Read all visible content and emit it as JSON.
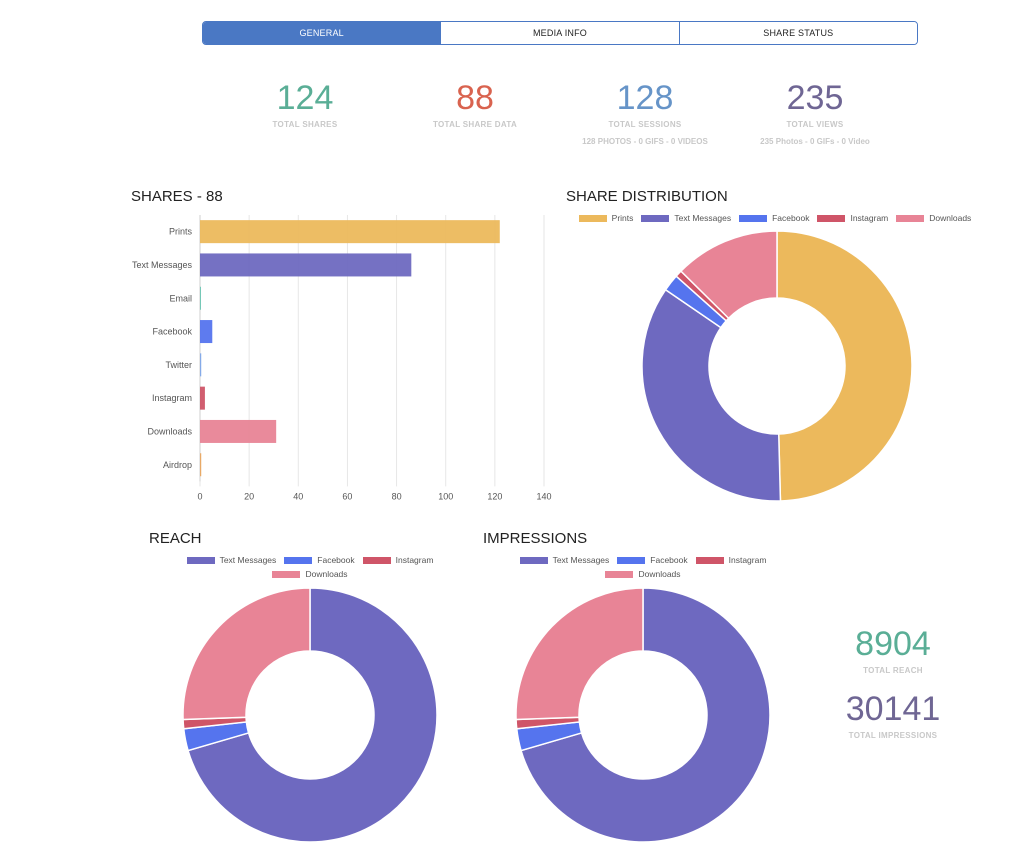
{
  "tabs": [
    {
      "label": "GENERAL",
      "active": true
    },
    {
      "label": "MEDIA INFO",
      "active": false
    },
    {
      "label": "SHARE STATUS",
      "active": false
    }
  ],
  "stats": {
    "total_shares": {
      "value": "124",
      "label": "TOTAL SHARES",
      "color": "#5aae96"
    },
    "total_share_data": {
      "value": "88",
      "label": "TOTAL SHARE DATA",
      "color": "#d9634f"
    },
    "total_sessions": {
      "value": "128",
      "label": "TOTAL SESSIONS",
      "sub": "128 PHOTOS - 0 GIFS - 0 VIDEOS",
      "color": "#6694c8"
    },
    "total_views": {
      "value": "235",
      "label": "TOTAL VIEWS",
      "sub": "235 Photos - 0 GIFs - 0 Video",
      "color": "#6f6694"
    }
  },
  "totals": {
    "reach": {
      "value": "8904",
      "label": "TOTAL REACH",
      "color": "#5aae96"
    },
    "impressions": {
      "value": "30141",
      "label": "TOTAL IMPRESSIONS",
      "color": "#6f6694"
    }
  },
  "colors": {
    "prints": "#ecb95c",
    "text_messages": "#6e69c0",
    "email": "#6fc6b4",
    "facebook": "#5574ee",
    "twitter": "#7fa7e8",
    "instagram": "#cf5568",
    "downloads": "#e88496",
    "airdrop": "#e8a560"
  },
  "chart_data": [
    {
      "type": "bar",
      "title": "SHARES - 88",
      "orientation": "horizontal",
      "categories": [
        "Prints",
        "Text Messages",
        "Email",
        "Facebook",
        "Twitter",
        "Instagram",
        "Downloads",
        "Airdrop"
      ],
      "values": [
        122,
        86,
        0.4,
        5,
        0.5,
        2,
        31,
        0.5
      ],
      "colors": [
        "#ecb95c",
        "#6e69c0",
        "#6fc6b4",
        "#5574ee",
        "#7fa7e8",
        "#cf5568",
        "#e88496",
        "#e8a560"
      ],
      "xlim": [
        0,
        140
      ],
      "xticks": [
        0,
        20,
        40,
        60,
        80,
        100,
        120,
        140
      ],
      "grid": true
    },
    {
      "type": "pie",
      "title": "SHARE DISTRIBUTION",
      "donut": true,
      "labels": [
        "Prints",
        "Text Messages",
        "Facebook",
        "Instagram",
        "Downloads"
      ],
      "values": [
        122,
        86,
        5,
        2,
        31
      ],
      "colors": [
        "#ecb95c",
        "#6e69c0",
        "#5574ee",
        "#cf5568",
        "#e88496"
      ],
      "legend": "top"
    },
    {
      "type": "pie",
      "title": "REACH",
      "donut": true,
      "labels": [
        "Text Messages",
        "Facebook",
        "Instagram",
        "Downloads"
      ],
      "values": [
        6276,
        248,
        104,
        2276
      ],
      "colors": [
        "#6e69c0",
        "#5574ee",
        "#cf5568",
        "#e88496"
      ],
      "legend": "top"
    },
    {
      "type": "pie",
      "title": "IMPRESSIONS",
      "donut": true,
      "labels": [
        "Text Messages",
        "Facebook",
        "Instagram",
        "Downloads"
      ],
      "values": [
        21245,
        840,
        352,
        7704
      ],
      "colors": [
        "#6e69c0",
        "#5574ee",
        "#cf5568",
        "#e88496"
      ],
      "legend": "top"
    }
  ]
}
